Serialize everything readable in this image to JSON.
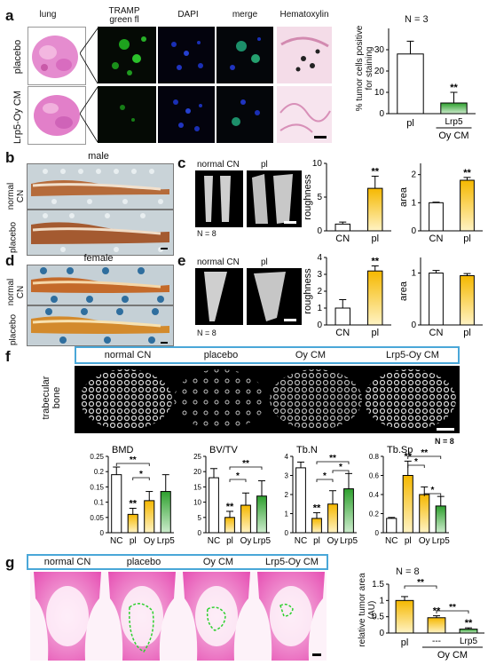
{
  "panels": [
    "a",
    "b",
    "c",
    "d",
    "e",
    "f",
    "g"
  ],
  "a": {
    "column_headers": [
      "lung",
      "TRAMP\ngreen fl",
      "DAPI",
      "merge",
      "Hematoxylin"
    ],
    "row_labels": [
      "placebo",
      "Lrp5-Oy CM"
    ],
    "chart": {
      "n_label": "N = 3",
      "ylabel": "% tumor cells positive for staining",
      "yticks": [
        "0",
        "10",
        "20",
        "30"
      ],
      "categories": [
        "pl",
        "Lrp5",
        "Oy CM"
      ],
      "sig": "**"
    }
  },
  "b": {
    "title": "male",
    "row_labels": [
      "normal\nCN",
      "placebo"
    ]
  },
  "c": {
    "img_labels": [
      "normal CN",
      "pl"
    ],
    "n_label": "N = 8",
    "chart1": {
      "ylabel": "roughness",
      "yticks": [
        "0",
        "5",
        "10"
      ],
      "cats": [
        "CN",
        "pl"
      ],
      "sig": "**"
    },
    "chart2": {
      "ylabel": "area",
      "yticks": [
        "0",
        "1",
        "2"
      ],
      "cats": [
        "CN",
        "pl"
      ],
      "sig": "**"
    }
  },
  "d": {
    "title": "female",
    "row_labels": [
      "normal\nCN",
      "placebo"
    ]
  },
  "e": {
    "img_labels": [
      "normal CN",
      "pl"
    ],
    "n_label": "N = 8",
    "chart1": {
      "ylabel": "roughness",
      "yticks": [
        "0",
        "1",
        "2",
        "3",
        "4"
      ],
      "cats": [
        "CN",
        "pl"
      ],
      "sig": "**"
    },
    "chart2": {
      "ylabel": "area",
      "yticks": [
        "0",
        "1"
      ],
      "cats": [
        "CN",
        "pl"
      ]
    }
  },
  "f": {
    "headers": [
      "normal CN",
      "placebo",
      "Oy CM",
      "Lrp5-Oy CM"
    ],
    "row_label": "trabecular\nbone",
    "n_label": "N = 8",
    "charts": [
      {
        "title": "BMD",
        "yticks": [
          "0",
          "0.05",
          "0.1",
          "0.15",
          "0.2",
          "0.25"
        ],
        "cats": [
          "NC",
          "pl",
          "Oy",
          "Lrp5"
        ]
      },
      {
        "title": "BV/TV",
        "yticks": [
          "0",
          "5",
          "10",
          "15",
          "20",
          "25"
        ],
        "cats": [
          "NC",
          "pl",
          "Oy",
          "Lrp5"
        ]
      },
      {
        "title": "Tb.N",
        "yticks": [
          "0",
          "1",
          "2",
          "3",
          "4"
        ],
        "cats": [
          "NC",
          "pl",
          "Oy",
          "Lrp5"
        ]
      },
      {
        "title": "Tb.Sp",
        "yticks": [
          "0",
          "0.2",
          "0.4",
          "0.6",
          "0.8"
        ],
        "cats": [
          "NC",
          "pl",
          "Oy",
          "Lrp5"
        ]
      }
    ],
    "sig1": "**",
    "sig2": "*"
  },
  "g": {
    "headers": [
      "normal CN",
      "placebo",
      "Oy CM",
      "Lrp5-Oy CM"
    ],
    "n_label": "N = 8",
    "chart": {
      "ylabel": "relative tumor area (AU)",
      "yticks": [
        "0",
        "0.5",
        "1",
        "1.5"
      ],
      "cats": [
        "pl",
        "---",
        "Lrp5"
      ],
      "group": "Oy CM",
      "sig": "**"
    }
  },
  "colors": {
    "white_bar": "#ffffff",
    "yellow_top": "#f5b800",
    "yellow_bottom": "#fff3c4",
    "green_top": "#2ea02e",
    "green_bottom": "#cdeccd",
    "frame": "#4aa7d8"
  },
  "chart_data": [
    {
      "type": "bar",
      "panel": "a",
      "categories": [
        "pl",
        "Lrp5-Oy CM"
      ],
      "values": [
        28,
        5
      ],
      "errors": [
        6,
        5
      ],
      "ylabel": "% tumor cells positive for staining",
      "ylim": [
        0,
        40
      ]
    },
    {
      "type": "bar",
      "panel": "c-roughness",
      "categories": [
        "CN",
        "pl"
      ],
      "values": [
        1,
        6.3
      ],
      "errors": [
        0.3,
        1.8
      ],
      "ylim": [
        0,
        10
      ]
    },
    {
      "type": "bar",
      "panel": "c-area",
      "categories": [
        "CN",
        "pl"
      ],
      "values": [
        1,
        1.8
      ],
      "errors": [
        0.02,
        0.1
      ],
      "ylim": [
        0,
        2.4
      ]
    },
    {
      "type": "bar",
      "panel": "e-roughness",
      "categories": [
        "CN",
        "pl"
      ],
      "values": [
        1,
        3.2
      ],
      "errors": [
        0.5,
        0.3
      ],
      "ylim": [
        0,
        4
      ]
    },
    {
      "type": "bar",
      "panel": "e-area",
      "categories": [
        "CN",
        "pl"
      ],
      "values": [
        1,
        0.95
      ],
      "errors": [
        0.05,
        0.04
      ],
      "ylim": [
        0,
        1.3
      ]
    },
    {
      "type": "bar",
      "panel": "f-BMD",
      "categories": [
        "NC",
        "pl",
        "Oy",
        "Lrp5"
      ],
      "values": [
        0.19,
        0.06,
        0.105,
        0.135
      ],
      "errors": [
        0.025,
        0.02,
        0.03,
        0.055
      ],
      "ylim": [
        0,
        0.25
      ]
    },
    {
      "type": "bar",
      "panel": "f-BV/TV",
      "categories": [
        "NC",
        "pl",
        "Oy",
        "Lrp5"
      ],
      "values": [
        18,
        5,
        9,
        12
      ],
      "errors": [
        3,
        2,
        4,
        5
      ],
      "ylim": [
        0,
        25
      ]
    },
    {
      "type": "bar",
      "panel": "f-Tb.N",
      "categories": [
        "NC",
        "pl",
        "Oy",
        "Lrp5"
      ],
      "values": [
        3.4,
        0.75,
        1.5,
        2.3
      ],
      "errors": [
        0.3,
        0.3,
        0.7,
        0.8
      ],
      "ylim": [
        0,
        4
      ]
    },
    {
      "type": "bar",
      "panel": "f-Tb.Sp",
      "categories": [
        "NC",
        "pl",
        "Oy",
        "Lrp5"
      ],
      "values": [
        0.15,
        0.6,
        0.4,
        0.28
      ],
      "errors": [
        0.01,
        0.15,
        0.08,
        0.1
      ],
      "ylim": [
        0,
        0.8
      ]
    },
    {
      "type": "bar",
      "panel": "g",
      "categories": [
        "pl",
        "Oy CM ---",
        "Oy CM Lrp5"
      ],
      "values": [
        1,
        0.47,
        0.12
      ],
      "errors": [
        0.12,
        0.06,
        0.04
      ],
      "ylim": [
        0,
        1.5
      ]
    }
  ]
}
